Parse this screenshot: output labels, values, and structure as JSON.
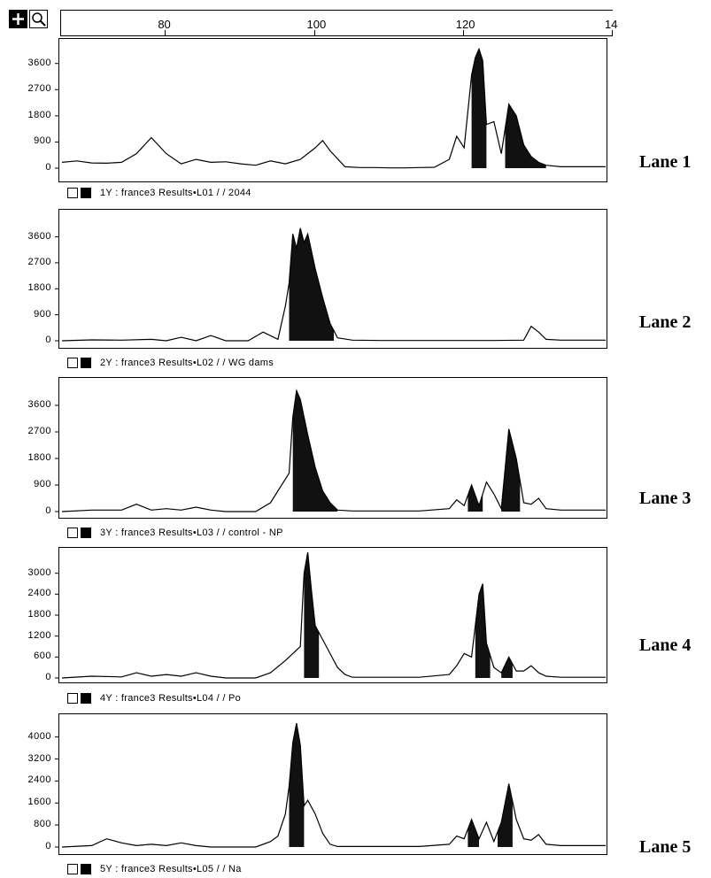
{
  "toolbar": {
    "zoom_icon": "plus-icon",
    "search_icon": "magnifier-icon",
    "ruler_ticks": [
      "80",
      "100",
      "120",
      "14"
    ]
  },
  "chart_data": [
    {
      "type": "line",
      "lane_label": "Lane 1",
      "caption": "1Y : france3 Results•L01 /  / 2044",
      "yticks": [
        "3600",
        "2700",
        "1800",
        "900",
        "0"
      ],
      "ylim": [
        0,
        4200
      ],
      "xlim": [
        67,
        140
      ],
      "x": [
        67,
        69,
        71,
        73,
        75,
        77,
        79,
        81,
        83,
        85,
        87,
        89,
        91,
        93,
        95,
        97,
        99,
        101,
        102,
        103,
        105,
        107,
        109,
        111,
        113,
        115,
        117,
        119,
        120,
        121,
        122,
        122.5,
        123,
        123.5,
        124,
        125,
        126,
        127,
        128,
        129,
        130,
        131,
        132,
        134,
        136,
        140
      ],
      "values": [
        200,
        250,
        180,
        170,
        200,
        500,
        1050,
        500,
        150,
        300,
        200,
        220,
        150,
        100,
        250,
        150,
        300,
        700,
        950,
        600,
        50,
        20,
        20,
        10,
        10,
        20,
        30,
        300,
        1100,
        700,
        3200,
        3800,
        4100,
        3700,
        1500,
        1600,
        500,
        2200,
        1800,
        800,
        400,
        200,
        100,
        50,
        50,
        50
      ],
      "filled_ranges": [
        [
          122,
          124
        ],
        [
          126.5,
          132
        ]
      ]
    },
    {
      "type": "line",
      "lane_label": "Lane 2",
      "caption": "2Y : france3 Results•L02 /  / WG dams",
      "yticks": [
        "3600",
        "2700",
        "1800",
        "900",
        "0"
      ],
      "ylim": [
        0,
        4200
      ],
      "xlim": [
        67,
        140
      ],
      "x": [
        67,
        71,
        75,
        79,
        81,
        83,
        85,
        87,
        89,
        92,
        94,
        96,
        97,
        97.5,
        98,
        98.5,
        99,
        99.5,
        100,
        101,
        102,
        103,
        104,
        106,
        110,
        115,
        120,
        125,
        129,
        130,
        131,
        132,
        134,
        140
      ],
      "values": [
        0,
        30,
        20,
        50,
        0,
        120,
        0,
        180,
        0,
        0,
        300,
        50,
        1200,
        2000,
        3700,
        3200,
        3900,
        3400,
        3700,
        2500,
        1500,
        600,
        100,
        20,
        10,
        10,
        10,
        10,
        20,
        500,
        300,
        50,
        20,
        20
      ],
      "filled_ranges": [
        [
          97.5,
          103.5
        ]
      ]
    },
    {
      "type": "line",
      "lane_label": "Lane 3",
      "caption": "3Y : france3 Results•L03 /  / control - NP",
      "yticks": [
        "3600",
        "2700",
        "1800",
        "900",
        "0"
      ],
      "ylim": [
        0,
        4200
      ],
      "xlim": [
        67,
        140
      ],
      "x": [
        67,
        71,
        75,
        77,
        79,
        81,
        83,
        85,
        87,
        89,
        93,
        95,
        97,
        97.5,
        98,
        98.5,
        99,
        100,
        101,
        102,
        103,
        104,
        106,
        110,
        115,
        119,
        120,
        121,
        122,
        123,
        124,
        125,
        126,
        127,
        128,
        129,
        130,
        131,
        132,
        134,
        140
      ],
      "values": [
        0,
        50,
        50,
        250,
        50,
        100,
        50,
        150,
        50,
        0,
        0,
        300,
        1100,
        1300,
        3200,
        4100,
        3800,
        2600,
        1500,
        700,
        300,
        50,
        20,
        20,
        20,
        100,
        400,
        200,
        900,
        200,
        1000,
        600,
        100,
        2800,
        1800,
        300,
        250,
        450,
        100,
        50,
        50
      ],
      "filled_ranges": [
        [
          98,
          104
        ],
        [
          121.5,
          123.5
        ],
        [
          126,
          128.5
        ]
      ]
    },
    {
      "type": "line",
      "lane_label": "Lane 4",
      "caption": "4Y : france3 Results•L04 /  / Po",
      "yticks": [
        "3000",
        "2400",
        "1800",
        "1200",
        "600",
        "0"
      ],
      "ylim": [
        0,
        3600
      ],
      "xlim": [
        67,
        140
      ],
      "x": [
        67,
        71,
        75,
        77,
        79,
        81,
        83,
        85,
        87,
        89,
        93,
        95,
        97,
        99,
        99.5,
        100,
        100.5,
        101,
        102,
        103,
        104,
        105,
        106,
        108,
        110,
        115,
        119,
        120,
        121,
        122,
        123,
        123.5,
        124,
        125,
        126,
        127,
        128,
        129,
        130,
        131,
        132,
        134,
        140
      ],
      "values": [
        0,
        50,
        30,
        150,
        50,
        100,
        50,
        150,
        50,
        0,
        0,
        150,
        500,
        900,
        3000,
        3600,
        2500,
        1500,
        1100,
        700,
        300,
        100,
        20,
        20,
        20,
        20,
        100,
        350,
        700,
        600,
        2400,
        2700,
        1000,
        300,
        150,
        600,
        200,
        200,
        350,
        150,
        50,
        20,
        20
      ],
      "filled_ranges": [
        [
          99.5,
          101.5
        ],
        [
          122.5,
          124.5
        ],
        [
          126,
          127.5
        ]
      ]
    },
    {
      "type": "line",
      "lane_label": "Lane 5",
      "caption": "5Y : france3 Results•L05 /  / Na",
      "yticks": [
        "4000",
        "3200",
        "2400",
        "1600",
        "800",
        "0"
      ],
      "ylim": [
        0,
        4600
      ],
      "xlim": [
        67,
        140
      ],
      "x": [
        67,
        71,
        73,
        75,
        77,
        79,
        81,
        83,
        85,
        87,
        89,
        93,
        95,
        96,
        97,
        97.5,
        98,
        98.5,
        99,
        99.5,
        100,
        101,
        102,
        103,
        104,
        106,
        110,
        115,
        119,
        120,
        121,
        122,
        123,
        124,
        125,
        126,
        127,
        128,
        129,
        130,
        131,
        132,
        134,
        140
      ],
      "values": [
        0,
        50,
        300,
        150,
        50,
        100,
        50,
        150,
        50,
        0,
        0,
        0,
        200,
        400,
        1200,
        2200,
        3800,
        4500,
        3700,
        1500,
        1700,
        1200,
        500,
        100,
        20,
        20,
        20,
        20,
        100,
        400,
        300,
        1000,
        300,
        900,
        200,
        900,
        2300,
        1000,
        300,
        250,
        450,
        100,
        50,
        50
      ],
      "filled_ranges": [
        [
          97.5,
          99.5
        ],
        [
          121.5,
          123
        ],
        [
          125.5,
          127.5
        ]
      ]
    }
  ]
}
